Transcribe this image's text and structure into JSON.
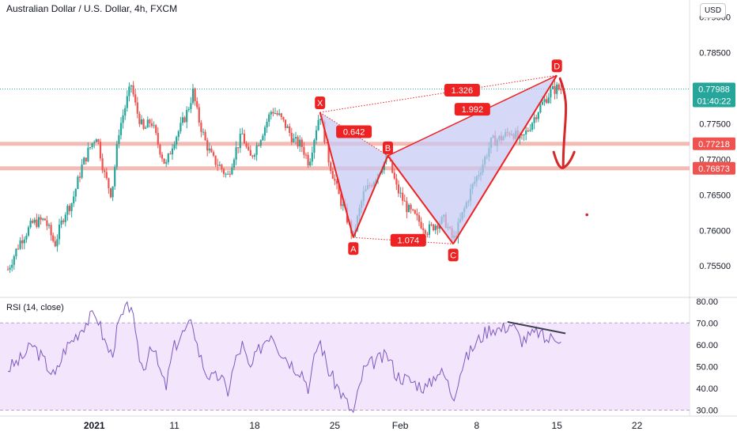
{
  "header": {
    "title": "Australian Dollar / U.S. Dollar, 4h, FXCM",
    "currency_button": "USD",
    "rsi_label": "RSI (14, close)"
  },
  "colors": {
    "up": "#26a69a",
    "down": "#ef5350",
    "pattern_line": "#ee2222",
    "pattern_fill": "#c5c8f3",
    "level_line": "#f0a49c",
    "price_tag": "#26a69a",
    "level_tag": "#ef5350",
    "rsi_line": "#7e57c2",
    "rsi_band": "#f3e5fb"
  },
  "chart_data": [
    {
      "type": "candlestick",
      "instrument": "Australian Dollar / U.S. Dollar",
      "timeframe": "4h",
      "source": "FXCM",
      "y_ticks": [
        0.79,
        0.785,
        0.78,
        0.775,
        0.77,
        0.765,
        0.76,
        0.755
      ],
      "y_tick_labels": [
        "0.79000",
        "0.78500",
        "0.78000",
        "0.77500",
        "0.77000",
        "0.76500",
        "0.76000",
        "0.75500"
      ],
      "ylim": [
        0.7508,
        0.7924
      ],
      "x_tick_labels": [
        "2021",
        "11",
        "18",
        "25",
        "Feb",
        "8",
        "15",
        "22"
      ],
      "current_price": {
        "value": 0.77988,
        "label": "0.77988",
        "countdown": "01:40:22"
      },
      "horizontal_levels": [
        {
          "value": 0.77218,
          "label": "0.77218"
        },
        {
          "value": 0.76873,
          "label": "0.76873"
        }
      ],
      "pattern": {
        "name": "harmonic XABCD",
        "points": [
          {
            "label": "X",
            "day": 25.3,
            "price": 0.7766
          },
          {
            "label": "A",
            "day": 28.0,
            "price": 0.759
          },
          {
            "label": "B",
            "day": 30.8,
            "price": 0.7705
          },
          {
            "label": "C",
            "day": 36.1,
            "price": 0.7581
          },
          {
            "label": "D",
            "day": 44.5,
            "price": 0.7818
          }
        ],
        "ratios": [
          "0.642",
          "1.074",
          "1.992",
          "1.326"
        ],
        "projection_target": 0.7688
      },
      "price_path": [
        [
          0.0,
          0.7545
        ],
        [
          1.0,
          0.7585
        ],
        [
          2.0,
          0.761
        ],
        [
          3.0,
          0.7615
        ],
        [
          3.8,
          0.758
        ],
        [
          4.6,
          0.7625
        ],
        [
          5.2,
          0.764
        ],
        [
          6.0,
          0.769
        ],
        [
          6.6,
          0.7715
        ],
        [
          7.2,
          0.7735
        ],
        [
          7.8,
          0.768
        ],
        [
          8.4,
          0.765
        ],
        [
          9.0,
          0.774
        ],
        [
          9.6,
          0.778
        ],
        [
          10.0,
          0.7805
        ],
        [
          10.4,
          0.777
        ],
        [
          11.0,
          0.774
        ],
        [
          11.6,
          0.7755
        ],
        [
          12.2,
          0.772
        ],
        [
          12.8,
          0.769
        ],
        [
          13.4,
          0.7725
        ],
        [
          14.0,
          0.7745
        ],
        [
          14.6,
          0.777
        ],
        [
          15.0,
          0.7795
        ],
        [
          15.4,
          0.776
        ],
        [
          16.0,
          0.7725
        ],
        [
          16.6,
          0.77
        ],
        [
          17.2,
          0.769
        ],
        [
          17.8,
          0.7675
        ],
        [
          18.4,
          0.771
        ],
        [
          19.0,
          0.7735
        ],
        [
          19.6,
          0.77
        ],
        [
          20.2,
          0.772
        ],
        [
          20.8,
          0.7745
        ],
        [
          21.4,
          0.777
        ],
        [
          22.0,
          0.776
        ],
        [
          22.6,
          0.7745
        ],
        [
          23.2,
          0.7725
        ],
        [
          23.8,
          0.772
        ],
        [
          24.4,
          0.7695
        ],
        [
          25.0,
          0.7745
        ],
        [
          25.3,
          0.7766
        ],
        [
          26.0,
          0.77
        ],
        [
          26.8,
          0.765
        ],
        [
          28.0,
          0.7592
        ],
        [
          28.8,
          0.765
        ],
        [
          29.6,
          0.767
        ],
        [
          30.8,
          0.7705
        ],
        [
          31.5,
          0.766
        ],
        [
          32.4,
          0.763
        ],
        [
          33.2,
          0.7615
        ],
        [
          34.0,
          0.76
        ],
        [
          34.8,
          0.761
        ],
        [
          35.4,
          0.7615
        ],
        [
          36.1,
          0.7585
        ],
        [
          36.8,
          0.762
        ],
        [
          37.6,
          0.766
        ],
        [
          38.4,
          0.769
        ],
        [
          39.2,
          0.7725
        ],
        [
          40.0,
          0.773
        ],
        [
          40.8,
          0.774
        ],
        [
          41.6,
          0.7725
        ],
        [
          42.4,
          0.775
        ],
        [
          43.0,
          0.777
        ],
        [
          43.6,
          0.7785
        ],
        [
          44.0,
          0.7795
        ],
        [
          44.5,
          0.78
        ],
        [
          44.9,
          0.7798
        ]
      ]
    },
    {
      "type": "line",
      "name": "RSI (14, close)",
      "y_ticks": [
        30,
        40,
        50,
        60,
        70,
        80
      ],
      "y_tick_labels": [
        "30.00",
        "40.00",
        "50.00",
        "60.00",
        "70.00",
        "80.00"
      ],
      "ylim": [
        28,
        81
      ],
      "bands": [
        30,
        70
      ],
      "divergence_line": {
        "start": [
          40.5,
          70.5
        ],
        "end": [
          45.2,
          65.2
        ]
      },
      "values_path": [
        [
          0.0,
          49
        ],
        [
          1.0,
          53
        ],
        [
          2.0,
          60
        ],
        [
          3.0,
          52
        ],
        [
          3.8,
          45
        ],
        [
          4.6,
          58
        ],
        [
          5.2,
          62
        ],
        [
          6.0,
          68
        ],
        [
          6.6,
          72
        ],
        [
          7.2,
          74
        ],
        [
          7.8,
          62
        ],
        [
          8.4,
          55
        ],
        [
          9.0,
          70
        ],
        [
          9.6,
          76
        ],
        [
          10.0,
          79
        ],
        [
          10.4,
          60
        ],
        [
          11.0,
          48
        ],
        [
          11.6,
          62
        ],
        [
          12.2,
          50
        ],
        [
          12.8,
          40
        ],
        [
          13.4,
          58
        ],
        [
          14.0,
          64
        ],
        [
          14.6,
          68
        ],
        [
          15.0,
          70
        ],
        [
          15.4,
          58
        ],
        [
          16.0,
          48
        ],
        [
          16.6,
          44
        ],
        [
          17.2,
          46
        ],
        [
          17.8,
          38
        ],
        [
          18.4,
          52
        ],
        [
          19.0,
          60
        ],
        [
          19.6,
          48
        ],
        [
          20.2,
          56
        ],
        [
          20.8,
          62
        ],
        [
          21.4,
          66
        ],
        [
          22.0,
          58
        ],
        [
          22.6,
          54
        ],
        [
          23.2,
          50
        ],
        [
          23.8,
          48
        ],
        [
          24.4,
          40
        ],
        [
          25.0,
          58
        ],
        [
          25.3,
          62
        ],
        [
          26.0,
          48
        ],
        [
          26.8,
          40
        ],
        [
          28.0,
          28
        ],
        [
          28.8,
          48
        ],
        [
          29.6,
          52
        ],
        [
          30.8,
          55
        ],
        [
          31.5,
          46
        ],
        [
          32.4,
          44
        ],
        [
          33.2,
          42
        ],
        [
          34.0,
          40
        ],
        [
          34.8,
          48
        ],
        [
          35.4,
          46
        ],
        [
          36.1,
          36
        ],
        [
          36.8,
          50
        ],
        [
          37.6,
          58
        ],
        [
          38.4,
          64
        ],
        [
          39.2,
          68
        ],
        [
          40.0,
          67
        ],
        [
          40.8,
          70
        ],
        [
          41.6,
          62
        ],
        [
          42.4,
          64
        ],
        [
          43.0,
          66
        ],
        [
          43.6,
          62
        ],
        [
          44.0,
          63
        ],
        [
          44.5,
          64
        ],
        [
          44.9,
          63
        ]
      ]
    }
  ]
}
